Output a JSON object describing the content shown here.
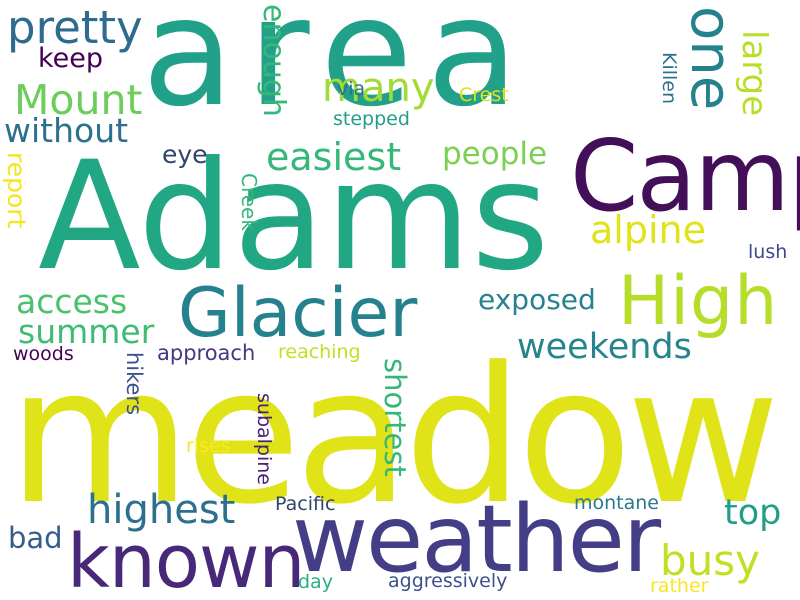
{
  "words": [
    {
      "key": "meadow",
      "text": "meadow",
      "color": "#dfe318"
    },
    {
      "key": "area",
      "text": "area",
      "color": "#21a08a"
    },
    {
      "key": "adams",
      "text": "Adams",
      "color": "#22a785"
    },
    {
      "key": "camp",
      "text": "Camp",
      "color": "#440f59"
    },
    {
      "key": "weather",
      "text": "weather",
      "color": "#433e85"
    },
    {
      "key": "known",
      "text": "known",
      "color": "#482878"
    },
    {
      "key": "glacier",
      "text": "Glacier",
      "color": "#26818e"
    },
    {
      "key": "high",
      "text": "High",
      "color": "#b5de2b"
    },
    {
      "key": "one",
      "text": "one",
      "color": "#26818e"
    },
    {
      "key": "pretty",
      "text": "pretty",
      "color": "#2f6b8e"
    },
    {
      "key": "mount",
      "text": "Mount",
      "color": "#6ccd5a"
    },
    {
      "key": "without",
      "text": "without",
      "color": "#2d708e"
    },
    {
      "key": "keep",
      "text": "keep",
      "color": "#440154"
    },
    {
      "key": "enough",
      "text": "enough",
      "color": "#35b779"
    },
    {
      "key": "many",
      "text": "many",
      "color": "#a2da37"
    },
    {
      "key": "large",
      "text": "large",
      "color": "#b8de29"
    },
    {
      "key": "easiest",
      "text": "easiest",
      "color": "#35b779"
    },
    {
      "key": "people",
      "text": "people",
      "color": "#7ad151"
    },
    {
      "key": "eye",
      "text": "eye",
      "color": "#31446b"
    },
    {
      "key": "report",
      "text": "report",
      "color": "#f4e61e"
    },
    {
      "key": "alpine",
      "text": "alpine",
      "color": "#dfe318"
    },
    {
      "key": "access",
      "text": "access",
      "color": "#4ac16d"
    },
    {
      "key": "summer",
      "text": "summer",
      "color": "#3fbc73"
    },
    {
      "key": "exposed",
      "text": "exposed",
      "color": "#26828e"
    },
    {
      "key": "weekends",
      "text": "weekends",
      "color": "#25848e"
    },
    {
      "key": "highest",
      "text": "highest",
      "color": "#2d708e"
    },
    {
      "key": "top",
      "text": "top",
      "color": "#1f9e89"
    },
    {
      "key": "busy",
      "text": "busy",
      "color": "#c2df23"
    },
    {
      "key": "bad",
      "text": "bad",
      "color": "#365d8d"
    },
    {
      "key": "woods",
      "text": "woods",
      "color": "#440154"
    },
    {
      "key": "approach",
      "text": "approach",
      "color": "#453781"
    },
    {
      "key": "reaching",
      "text": "reaching",
      "color": "#c2df23"
    },
    {
      "key": "shortest",
      "text": "shortest",
      "color": "#35b779"
    },
    {
      "key": "hikers",
      "text": "hikers",
      "color": "#3b528b"
    },
    {
      "key": "subalpine",
      "text": "subalpine",
      "color": "#482173"
    },
    {
      "key": "rises",
      "text": "rises",
      "color": "#fde725"
    },
    {
      "key": "creek",
      "text": "Creek",
      "color": "#35b779"
    },
    {
      "key": "via",
      "text": "via",
      "color": "#2c728e"
    },
    {
      "key": "stepped",
      "text": "stepped",
      "color": "#1f9e89"
    },
    {
      "key": "crest",
      "text": "Crest",
      "color": "#dfe318"
    },
    {
      "key": "killen",
      "text": "Killen",
      "color": "#2c728e"
    },
    {
      "key": "lush",
      "text": "lush",
      "color": "#3e4a89"
    },
    {
      "key": "pacific",
      "text": "Pacific",
      "color": "#31446b"
    },
    {
      "key": "montane",
      "text": "montane",
      "color": "#2a788e"
    },
    {
      "key": "day",
      "text": "day",
      "color": "#29af7f"
    },
    {
      "key": "aggressively",
      "text": "aggressively",
      "color": "#3b528b"
    },
    {
      "key": "rather",
      "text": "rather",
      "color": "#f8e621"
    }
  ]
}
